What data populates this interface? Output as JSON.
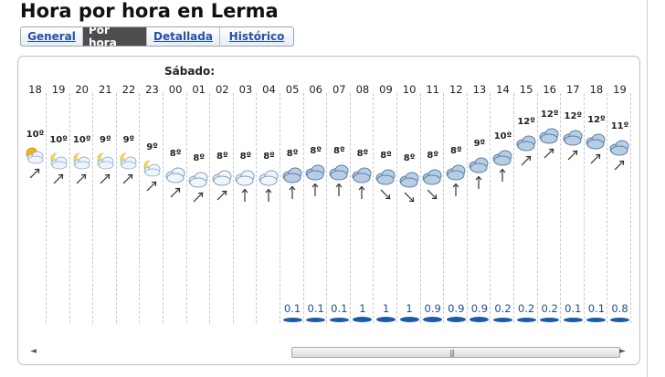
{
  "page": {
    "title": "Hora por hora en Lerma"
  },
  "tabs": [
    {
      "label": "General",
      "active": false
    },
    {
      "label": "Por hora",
      "active": true
    },
    {
      "label": "Detallada",
      "active": false
    },
    {
      "label": "Histórico",
      "active": false
    }
  ],
  "forecast": {
    "day_label": "Sábado:",
    "hours": [
      {
        "hour": "18",
        "temp": "10º",
        "icon": "sun-cloud-icon",
        "wind": "arrow-northeast-icon",
        "rain": ""
      },
      {
        "hour": "19",
        "temp": "10º",
        "icon": "moon-cloud-icon",
        "wind": "arrow-northeast-icon",
        "rain": ""
      },
      {
        "hour": "20",
        "temp": "10º",
        "icon": "moon-cloud-icon",
        "wind": "arrow-northeast-icon",
        "rain": ""
      },
      {
        "hour": "21",
        "temp": "9º",
        "icon": "moon-cloud-icon",
        "wind": "arrow-northeast-icon",
        "rain": ""
      },
      {
        "hour": "22",
        "temp": "9º",
        "icon": "moon-cloud-icon",
        "wind": "arrow-northeast-icon",
        "rain": ""
      },
      {
        "hour": "23",
        "temp": "9º",
        "icon": "moon-cloud-icon",
        "wind": "arrow-northeast-icon",
        "rain": ""
      },
      {
        "hour": "00",
        "temp": "8º",
        "icon": "cloud-icon",
        "wind": "arrow-northeast-icon",
        "rain": ""
      },
      {
        "hour": "01",
        "temp": "8º",
        "icon": "cloud-icon",
        "wind": "arrow-northeast-icon",
        "rain": ""
      },
      {
        "hour": "02",
        "temp": "8º",
        "icon": "cloud-icon",
        "wind": "arrow-northeast-icon",
        "rain": ""
      },
      {
        "hour": "03",
        "temp": "8º",
        "icon": "cloud-icon",
        "wind": "arrow-north-icon",
        "rain": ""
      },
      {
        "hour": "04",
        "temp": "8º",
        "icon": "cloud-icon",
        "wind": "arrow-north-icon",
        "rain": ""
      },
      {
        "hour": "05",
        "temp": "8º",
        "icon": "overcast-icon",
        "wind": "arrow-north-icon",
        "rain": "0.1"
      },
      {
        "hour": "06",
        "temp": "8º",
        "icon": "overcast-icon",
        "wind": "arrow-north-icon",
        "rain": "0.1"
      },
      {
        "hour": "07",
        "temp": "8º",
        "icon": "overcast-icon",
        "wind": "arrow-north-icon",
        "rain": "0.1"
      },
      {
        "hour": "08",
        "temp": "8º",
        "icon": "overcast-icon",
        "wind": "arrow-north-icon",
        "rain": "1"
      },
      {
        "hour": "09",
        "temp": "8º",
        "icon": "overcast-icon",
        "wind": "arrow-southeast-icon",
        "rain": "1"
      },
      {
        "hour": "10",
        "temp": "8º",
        "icon": "overcast-icon",
        "wind": "arrow-southeast-icon",
        "rain": "1"
      },
      {
        "hour": "11",
        "temp": "8º",
        "icon": "overcast-icon",
        "wind": "arrow-southeast-icon",
        "rain": "0.9"
      },
      {
        "hour": "12",
        "temp": "8º",
        "icon": "overcast-icon",
        "wind": "arrow-north-icon",
        "rain": "0.9"
      },
      {
        "hour": "13",
        "temp": "9º",
        "icon": "overcast-icon",
        "wind": "arrow-north-icon",
        "rain": "0.9"
      },
      {
        "hour": "14",
        "temp": "10º",
        "icon": "overcast-icon",
        "wind": "arrow-north-icon",
        "rain": "0.2"
      },
      {
        "hour": "15",
        "temp": "12º",
        "icon": "overcast-icon",
        "wind": "arrow-northeast-icon",
        "rain": "0.2"
      },
      {
        "hour": "16",
        "temp": "12º",
        "icon": "overcast-icon",
        "wind": "arrow-northeast-icon",
        "rain": "0.2"
      },
      {
        "hour": "17",
        "temp": "12º",
        "icon": "overcast-icon",
        "wind": "arrow-northeast-icon",
        "rain": "0.1"
      },
      {
        "hour": "18",
        "temp": "12º",
        "icon": "overcast-icon",
        "wind": "arrow-northeast-icon",
        "rain": "0.1"
      },
      {
        "hour": "19",
        "temp": "11º",
        "icon": "overcast-icon",
        "wind": "arrow-northeast-icon",
        "rain": "0.8"
      }
    ]
  },
  "scrollbar": {
    "left_arrow": "◄",
    "right_arrow": "►",
    "grip": "|||"
  }
}
